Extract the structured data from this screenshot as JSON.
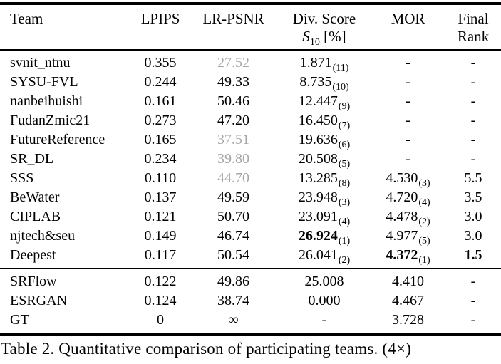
{
  "caption": "Table 2. Quantitative comparison of participating teams. (4×)",
  "gray_hex": "#a6a6a6",
  "columns": [
    {
      "line1": "Team"
    },
    {
      "line1": "LPIPS"
    },
    {
      "line1": "LR-PSNR"
    },
    {
      "line1": "Div. Score",
      "line2_math": {
        "var": "S",
        "sub": "10",
        "unit": "[%]"
      }
    },
    {
      "line1": "MOR"
    },
    {
      "line1": "Final",
      "line2": "Rank"
    }
  ],
  "sections": [
    {
      "rows": [
        {
          "cells": [
            {
              "t": "svnit_ntnu"
            },
            {
              "t": "0.355"
            },
            {
              "t": "27.52",
              "gray": true
            },
            {
              "t": "1.871",
              "sub": "(11)"
            },
            {
              "t": "-"
            },
            {
              "t": "-"
            }
          ]
        },
        {
          "cells": [
            {
              "t": "SYSU-FVL"
            },
            {
              "t": "0.244"
            },
            {
              "t": "49.33"
            },
            {
              "t": "8.735",
              "sub": "(10)"
            },
            {
              "t": "-"
            },
            {
              "t": "-"
            }
          ]
        },
        {
          "cells": [
            {
              "t": "nanbeihuishi"
            },
            {
              "t": "0.161"
            },
            {
              "t": "50.46"
            },
            {
              "t": "12.447",
              "sub": "(9)"
            },
            {
              "t": "-"
            },
            {
              "t": "-"
            }
          ]
        },
        {
          "cells": [
            {
              "t": "FudanZmic21"
            },
            {
              "t": "0.273"
            },
            {
              "t": "47.20"
            },
            {
              "t": "16.450",
              "sub": "(7)"
            },
            {
              "t": "-"
            },
            {
              "t": "-"
            }
          ]
        },
        {
          "cells": [
            {
              "t": "FutureReference"
            },
            {
              "t": "0.165"
            },
            {
              "t": "37.51",
              "gray": true
            },
            {
              "t": "19.636",
              "sub": "(6)"
            },
            {
              "t": "-"
            },
            {
              "t": "-"
            }
          ]
        },
        {
          "cells": [
            {
              "t": "SR_DL"
            },
            {
              "t": "0.234"
            },
            {
              "t": "39.80",
              "gray": true
            },
            {
              "t": "20.508",
              "sub": "(5)"
            },
            {
              "t": "-"
            },
            {
              "t": "-"
            }
          ]
        },
        {
          "cells": [
            {
              "t": "SSS"
            },
            {
              "t": "0.110"
            },
            {
              "t": "44.70",
              "gray": true
            },
            {
              "t": "13.285",
              "sub": "(8)"
            },
            {
              "t": "4.530",
              "sub2": "(3)"
            },
            {
              "t": "5.5"
            }
          ]
        },
        {
          "cells": [
            {
              "t": "BeWater"
            },
            {
              "t": "0.137"
            },
            {
              "t": "49.59"
            },
            {
              "t": "23.948",
              "sub": "(3)"
            },
            {
              "t": "4.720",
              "sub2": "(4)"
            },
            {
              "t": "3.5"
            }
          ]
        },
        {
          "cells": [
            {
              "t": "CIPLAB"
            },
            {
              "t": "0.121"
            },
            {
              "t": "50.70"
            },
            {
              "t": "23.091",
              "sub": "(4)"
            },
            {
              "t": "4.478",
              "sub2": "(2)"
            },
            {
              "t": "3.0"
            }
          ]
        },
        {
          "cells": [
            {
              "t": "njtech&seu"
            },
            {
              "t": "0.149"
            },
            {
              "t": "46.74"
            },
            {
              "t": "26.924",
              "sub": "(1)",
              "bold": true
            },
            {
              "t": "4.977",
              "sub2": "(5)"
            },
            {
              "t": "3.0"
            }
          ]
        },
        {
          "cells": [
            {
              "t": "Deepest"
            },
            {
              "t": "0.117"
            },
            {
              "t": "50.54"
            },
            {
              "t": "26.041",
              "sub": "(2)"
            },
            {
              "t": "4.372",
              "sub2": "(1)",
              "bold": true
            },
            {
              "t": "1.5",
              "bold": true
            }
          ]
        }
      ]
    },
    {
      "rows": [
        {
          "cells": [
            {
              "t": "SRFlow"
            },
            {
              "t": "0.122"
            },
            {
              "t": "49.86"
            },
            {
              "t": "25.008"
            },
            {
              "t": "4.410"
            },
            {
              "t": "-"
            }
          ]
        },
        {
          "cells": [
            {
              "t": "ESRGAN"
            },
            {
              "t": "0.124"
            },
            {
              "t": "38.74"
            },
            {
              "t": "0.000"
            },
            {
              "t": "4.467"
            },
            {
              "t": "-"
            }
          ]
        },
        {
          "cells": [
            {
              "t": "GT"
            },
            {
              "t": "0"
            },
            {
              "t": "∞"
            },
            {
              "t": "-"
            },
            {
              "t": "3.728"
            },
            {
              "t": "-"
            }
          ]
        }
      ]
    }
  ]
}
